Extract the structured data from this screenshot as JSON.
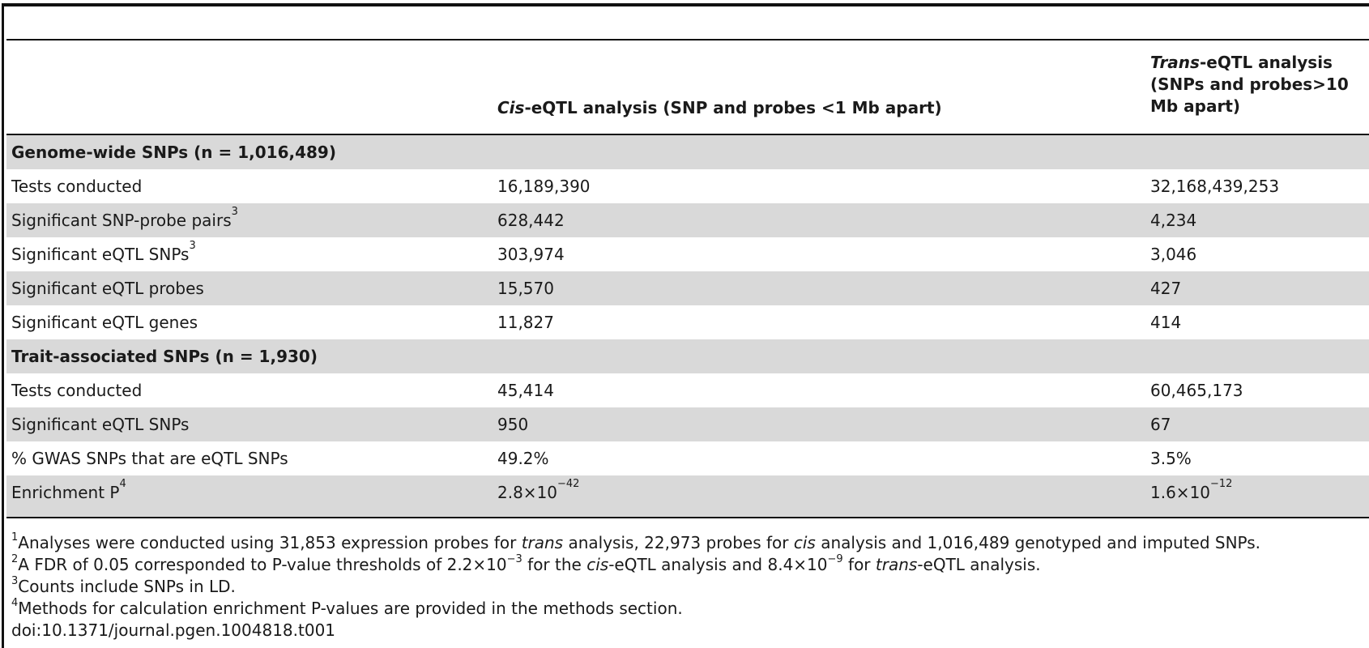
{
  "table": {
    "columns": {
      "cis_prefix": "Cis",
      "cis_rest": "-eQTL analysis (SNP and probes <1 Mb apart)",
      "trans_prefix": "Trans",
      "trans_line1": "-eQTL analysis",
      "trans_line2": "(SNPs and probes>10",
      "trans_line3": "Mb apart)"
    },
    "rows": [
      {
        "label": "Genome-wide SNPs (n = 1,016,489)",
        "cis": "",
        "trans": ""
      },
      {
        "label": "Tests conducted",
        "cis": "16,189,390",
        "trans": "32,168,439,253"
      },
      {
        "label": "Significant SNP-probe pairs",
        "sup": "3",
        "cis": "628,442",
        "trans": "4,234"
      },
      {
        "label": "Significant eQTL SNPs",
        "sup": "3",
        "cis": "303,974",
        "trans": "3,046"
      },
      {
        "label": "Significant eQTL probes",
        "cis": "15,570",
        "trans": "427"
      },
      {
        "label": "Significant eQTL genes",
        "cis": "11,827",
        "trans": "414"
      },
      {
        "label": "Trait-associated SNPs (n = 1,930)",
        "cis": "",
        "trans": ""
      },
      {
        "label": "Tests conducted",
        "cis": "45,414",
        "trans": "60,465,173"
      },
      {
        "label": "Significant eQTL SNPs",
        "cis": "950",
        "trans": "67"
      },
      {
        "label": "% GWAS SNPs that are eQTL SNPs",
        "cis": "49.2%",
        "trans": "3.5%"
      },
      {
        "label": "Enrichment P",
        "sup": "4",
        "cis_base": "2.8×10",
        "cis_exp": "−42",
        "trans_base": "1.6×10",
        "trans_exp": "−12"
      }
    ]
  },
  "footnotes": {
    "n1": {
      "mark": "1",
      "a": "Analyses were conducted using 31,853 expression probes for ",
      "i1": "trans",
      "b": " analysis, 22,973 probes for ",
      "i2": "cis",
      "c": " analysis and 1,016,489 genotyped and imputed SNPs."
    },
    "n2": {
      "mark": "2",
      "a": "A FDR of 0.05 corresponded to P-value thresholds of 2.2×10",
      "e1": "−3",
      "b": " for the ",
      "i1": "cis",
      "c": "-eQTL analysis and 8.4×10",
      "e2": "−9",
      "d": " for ",
      "i2": "trans",
      "e": "-eQTL analysis."
    },
    "n3": {
      "mark": "3",
      "text": "Counts include SNPs in LD."
    },
    "n4": {
      "mark": "4",
      "text": "Methods for calculation enrichment P-values are provided in the methods section."
    },
    "doi": "doi:10.1371/journal.pgen.1004818.t001"
  }
}
